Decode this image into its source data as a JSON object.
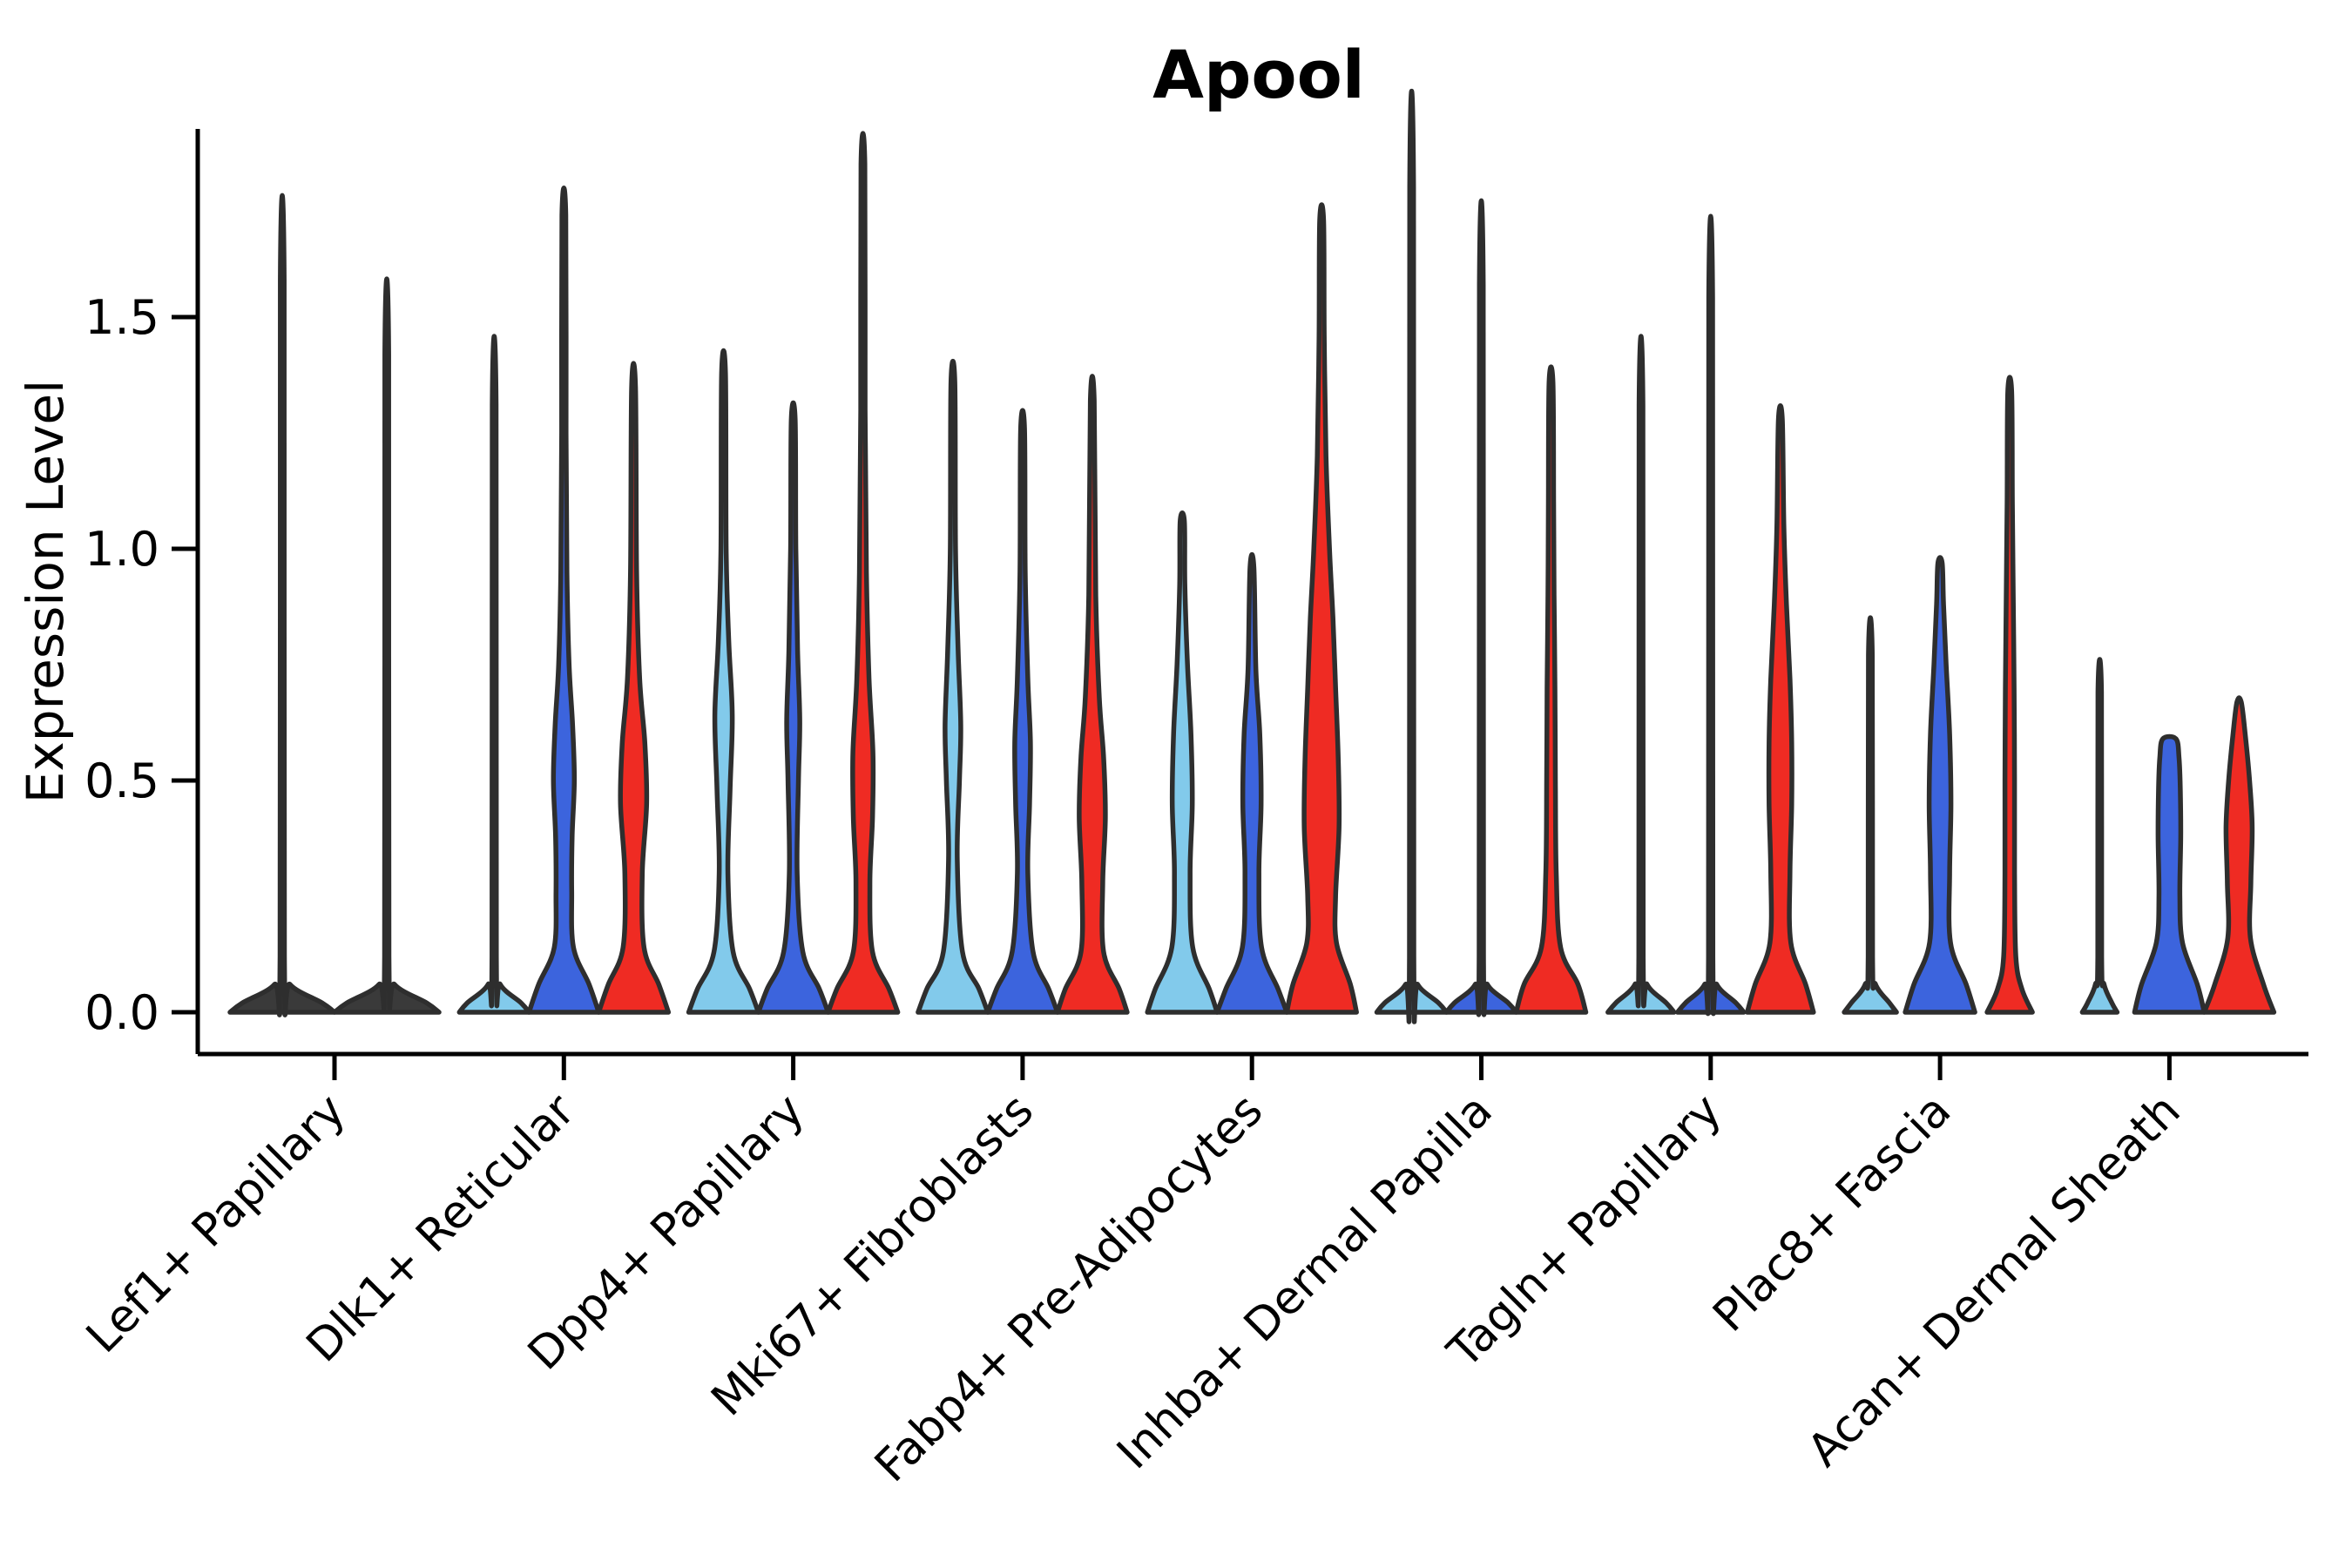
{
  "chart_data": {
    "type": "violin",
    "title": "Apool",
    "xlabel": "",
    "ylabel": "Expression Level",
    "ylim": [
      -0.09,
      1.9
    ],
    "yticks": [
      0,
      0.5,
      1.0,
      1.5
    ],
    "ytick_labels": [
      "0.0",
      "0.5",
      "1.0",
      "1.5"
    ],
    "grid": "off",
    "legend_position": "none",
    "group_colors": {
      "light_blue": "#82CAEB",
      "blue": "#3C64DD",
      "red": "#EF2B23",
      "uncolored": "#3a3a3a"
    },
    "outline_color": "#2E2E2E",
    "categories": [
      {
        "label": "Lef1+ Papillary",
        "violins": [
          {
            "group": "uncolored",
            "max": 1.58,
            "profile": [
              [
                0,
                60
              ],
              [
                0.02,
                46
              ],
              [
                0.06,
                9
              ],
              [
                0.12,
                2.5
              ],
              [
                1.58,
                2.2
              ]
            ]
          },
          {
            "group": "uncolored",
            "max": 1.42,
            "profile": [
              [
                0,
                60
              ],
              [
                0.02,
                46
              ],
              [
                0.06,
                9
              ],
              [
                0.12,
                2.5
              ],
              [
                1.42,
                2.2
              ]
            ]
          }
        ]
      },
      {
        "label": "Dlk1+ Reticular",
        "violins": [
          {
            "group": "light_blue",
            "max": 1.31,
            "profile": [
              [
                0,
                40
              ],
              [
                0.02,
                31
              ],
              [
                0.06,
                7
              ],
              [
                0.12,
                2.5
              ],
              [
                1.31,
                2.2
              ]
            ]
          },
          {
            "group": "blue",
            "max": 1.72,
            "profile": [
              [
                0,
                40
              ],
              [
                0.06,
                29
              ],
              [
                0.14,
                11
              ],
              [
                0.26,
                9
              ],
              [
                0.38,
                9.5
              ],
              [
                0.5,
                12
              ],
              [
                0.62,
                10
              ],
              [
                0.75,
                6
              ],
              [
                0.95,
                3.5
              ],
              [
                1.25,
                2.5
              ],
              [
                1.72,
                2.2
              ]
            ]
          },
          {
            "group": "red",
            "max": 1.35,
            "profile": [
              [
                0,
                40
              ],
              [
                0.06,
                29
              ],
              [
                0.14,
                12
              ],
              [
                0.3,
                10
              ],
              [
                0.45,
                15
              ],
              [
                0.58,
                13
              ],
              [
                0.72,
                7
              ],
              [
                0.95,
                3.5
              ],
              [
                1.35,
                2.2
              ]
            ]
          }
        ]
      },
      {
        "label": "Dpp4+ Papillary",
        "violins": [
          {
            "group": "light_blue",
            "max": 1.38,
            "profile": [
              [
                0,
                40
              ],
              [
                0.05,
                30
              ],
              [
                0.13,
                11
              ],
              [
                0.3,
                5
              ],
              [
                0.48,
                7.5
              ],
              [
                0.64,
                10
              ],
              [
                0.8,
                6
              ],
              [
                1.0,
                3
              ],
              [
                1.38,
                2.2
              ]
            ]
          },
          {
            "group": "blue",
            "max": 1.28,
            "profile": [
              [
                0,
                40
              ],
              [
                0.05,
                30
              ],
              [
                0.13,
                11
              ],
              [
                0.3,
                4.5
              ],
              [
                0.5,
                6
              ],
              [
                0.63,
                7.5
              ],
              [
                0.78,
                5
              ],
              [
                1.0,
                3
              ],
              [
                1.28,
                2.2
              ]
            ]
          },
          {
            "group": "red",
            "max": 1.83,
            "profile": [
              [
                0,
                40
              ],
              [
                0.05,
                30
              ],
              [
                0.13,
                11
              ],
              [
                0.28,
                8
              ],
              [
                0.42,
                11
              ],
              [
                0.56,
                11.5
              ],
              [
                0.72,
                7
              ],
              [
                0.95,
                4
              ],
              [
                1.3,
                2.5
              ],
              [
                1.83,
                2.2
              ]
            ]
          }
        ]
      },
      {
        "label": "Mki67+ Fibroblasts",
        "violins": [
          {
            "group": "light_blue",
            "max": 1.36,
            "profile": [
              [
                0,
                40
              ],
              [
                0.05,
                30
              ],
              [
                0.13,
                11
              ],
              [
                0.33,
                5
              ],
              [
                0.5,
                7.5
              ],
              [
                0.62,
                9
              ],
              [
                0.78,
                6
              ],
              [
                1.0,
                3
              ],
              [
                1.36,
                2.2
              ]
            ]
          },
          {
            "group": "blue",
            "max": 1.26,
            "profile": [
              [
                0,
                40
              ],
              [
                0.05,
                30
              ],
              [
                0.13,
                12
              ],
              [
                0.3,
                6
              ],
              [
                0.45,
                8
              ],
              [
                0.58,
                9
              ],
              [
                0.72,
                6
              ],
              [
                0.95,
                3
              ],
              [
                1.26,
                2.2
              ]
            ]
          },
          {
            "group": "red",
            "max": 1.32,
            "profile": [
              [
                0,
                40
              ],
              [
                0.05,
                31
              ],
              [
                0.13,
                13
              ],
              [
                0.28,
                12
              ],
              [
                0.42,
                15
              ],
              [
                0.55,
                13
              ],
              [
                0.68,
                8
              ],
              [
                0.9,
                4
              ],
              [
                1.32,
                2.2
              ]
            ]
          }
        ]
      },
      {
        "label": "Fabp4+ Pre-Adipocytes",
        "violins": [
          {
            "group": "light_blue",
            "max": 1.06,
            "profile": [
              [
                0,
                40
              ],
              [
                0.05,
                31
              ],
              [
                0.14,
                12
              ],
              [
                0.3,
                9
              ],
              [
                0.45,
                11.5
              ],
              [
                0.6,
                10
              ],
              [
                0.75,
                6
              ],
              [
                0.92,
                3
              ],
              [
                1.06,
                2.4
              ]
            ]
          },
          {
            "group": "blue",
            "max": 0.96,
            "profile": [
              [
                0,
                40
              ],
              [
                0.05,
                30
              ],
              [
                0.14,
                11
              ],
              [
                0.3,
                8
              ],
              [
                0.45,
                10.5
              ],
              [
                0.6,
                9
              ],
              [
                0.74,
                4.5
              ],
              [
                0.96,
                2.2
              ]
            ]
          },
          {
            "group": "red",
            "max": 1.71,
            "profile": [
              [
                0,
                40
              ],
              [
                0.06,
                33
              ],
              [
                0.15,
                17
              ],
              [
                0.25,
                16
              ],
              [
                0.4,
                20
              ],
              [
                0.55,
                19
              ],
              [
                0.7,
                16
              ],
              [
                0.85,
                13
              ],
              [
                1.0,
                9
              ],
              [
                1.2,
                5
              ],
              [
                1.45,
                3
              ],
              [
                1.71,
                2.2
              ]
            ]
          }
        ]
      },
      {
        "label": "Inhba+ Dermal Papilla",
        "violins": [
          {
            "group": "light_blue",
            "max": 1.78,
            "profile": [
              [
                0,
                40
              ],
              [
                0.02,
                31
              ],
              [
                0.06,
                7
              ],
              [
                0.12,
                2.5
              ],
              [
                1.78,
                2.2
              ]
            ]
          },
          {
            "group": "blue",
            "max": 1.57,
            "profile": [
              [
                0,
                40
              ],
              [
                0.02,
                31
              ],
              [
                0.06,
                7
              ],
              [
                0.12,
                2.5
              ],
              [
                1.57,
                2.2
              ]
            ]
          },
          {
            "group": "red",
            "max": 1.36,
            "profile": [
              [
                0,
                40
              ],
              [
                0.06,
                31
              ],
              [
                0.14,
                11
              ],
              [
                0.3,
                6
              ],
              [
                0.5,
                5
              ],
              [
                0.7,
                4.5
              ],
              [
                0.9,
                3.5
              ],
              [
                1.1,
                3
              ],
              [
                1.36,
                2.2
              ]
            ]
          }
        ]
      },
      {
        "label": "Tagln+ Papillary",
        "violins": [
          {
            "group": "light_blue",
            "max": 1.31,
            "profile": [
              [
                0,
                38
              ],
              [
                0.02,
                29
              ],
              [
                0.06,
                7
              ],
              [
                0.12,
                2.5
              ],
              [
                1.31,
                2.2
              ]
            ]
          },
          {
            "group": "blue",
            "max": 1.54,
            "profile": [
              [
                0,
                38
              ],
              [
                0.02,
                29
              ],
              [
                0.06,
                7
              ],
              [
                0.12,
                2.5
              ],
              [
                1.54,
                2.2
              ]
            ]
          },
          {
            "group": "red",
            "max": 1.28,
            "profile": [
              [
                0,
                38
              ],
              [
                0.06,
                29
              ],
              [
                0.15,
                12
              ],
              [
                0.3,
                11
              ],
              [
                0.45,
                13
              ],
              [
                0.58,
                13
              ],
              [
                0.72,
                11
              ],
              [
                0.88,
                7
              ],
              [
                1.05,
                4
              ],
              [
                1.28,
                2.2
              ]
            ]
          }
        ]
      },
      {
        "label": "Plac8+ Fascia",
        "violins": [
          {
            "group": "light_blue",
            "max": 0.77,
            "profile": [
              [
                0,
                30
              ],
              [
                0.02,
                22
              ],
              [
                0.06,
                6
              ],
              [
                0.12,
                2.5
              ],
              [
                0.77,
                2.2
              ]
            ]
          },
          {
            "group": "blue",
            "max": 0.97,
            "profile": [
              [
                0,
                40
              ],
              [
                0.06,
                30
              ],
              [
                0.15,
                12
              ],
              [
                0.3,
                11
              ],
              [
                0.45,
                12.5
              ],
              [
                0.6,
                11
              ],
              [
                0.75,
                7
              ],
              [
                0.88,
                4
              ],
              [
                0.97,
                2.4
              ]
            ]
          },
          {
            "group": "red",
            "max": 1.34,
            "profile": [
              [
                0,
                26
              ],
              [
                0.05,
                14
              ],
              [
                0.12,
                7
              ],
              [
                0.3,
                5.5
              ],
              [
                0.5,
                5.5
              ],
              [
                0.7,
                5
              ],
              [
                0.9,
                4
              ],
              [
                1.1,
                3
              ],
              [
                1.34,
                2.2
              ]
            ]
          }
        ]
      },
      {
        "label": "Acan+ Dermal Sheath",
        "violins": [
          {
            "group": "light_blue",
            "max": 0.69,
            "profile": [
              [
                0,
                20
              ],
              [
                0.02,
                14
              ],
              [
                0.06,
                5
              ],
              [
                0.12,
                2.2
              ],
              [
                0.69,
                2
              ]
            ]
          },
          {
            "group": "blue",
            "max": 0.59,
            "profile": [
              [
                0,
                40
              ],
              [
                0.06,
                32
              ],
              [
                0.15,
                15
              ],
              [
                0.25,
                12
              ],
              [
                0.38,
                13
              ],
              [
                0.48,
                12.5
              ],
              [
                0.55,
                11
              ],
              [
                0.59,
                7.5
              ]
            ]
          },
          {
            "group": "red",
            "max": 0.67,
            "profile": [
              [
                0,
                40
              ],
              [
                0.06,
                28
              ],
              [
                0.16,
                13
              ],
              [
                0.28,
                13.5
              ],
              [
                0.4,
                15
              ],
              [
                0.5,
                12
              ],
              [
                0.6,
                7
              ],
              [
                0.67,
                2.4
              ]
            ]
          }
        ]
      }
    ]
  }
}
